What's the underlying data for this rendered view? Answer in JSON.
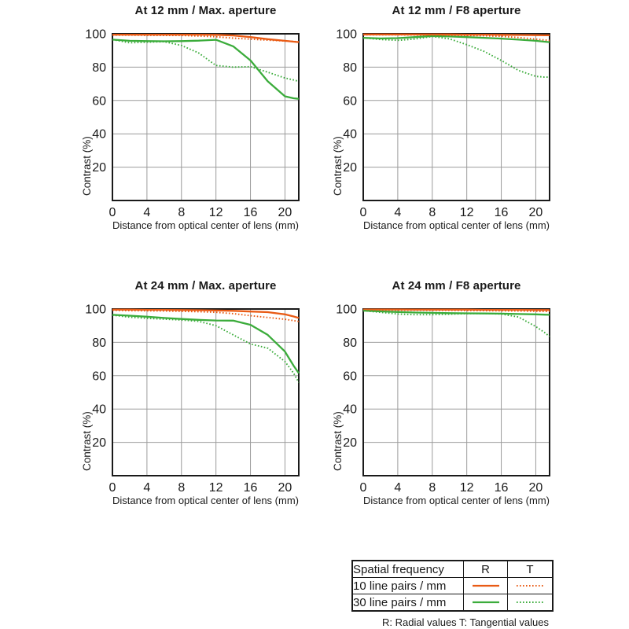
{
  "colors": {
    "orange": "#E95B15",
    "green": "#3BAC3B",
    "grid": "#9b9b9b",
    "axis": "#1a1a1a"
  },
  "legend": {
    "header": {
      "freq": "Spatial frequency",
      "r": "R",
      "t": "T"
    },
    "rows": [
      {
        "label": "10 line pairs / mm",
        "color": "orange"
      },
      {
        "label": "30 line pairs / mm",
        "color": "green"
      }
    ],
    "footnote": "R: Radial values  T: Tangential values"
  },
  "chart_data": [
    {
      "type": "line",
      "title": "At 12 mm / Max. aperture",
      "xlabel": "Distance from optical center of lens (mm)",
      "ylabel": "Contrast (%)",
      "xlim": [
        0,
        21.6
      ],
      "ylim": [
        0,
        100
      ],
      "xticks": [
        0,
        4,
        8,
        12,
        16,
        20
      ],
      "yticks": [
        20,
        40,
        60,
        80,
        100
      ],
      "grid": true,
      "x": [
        0,
        2,
        4,
        6,
        8,
        10,
        12,
        14,
        16,
        18,
        20,
        21,
        21.6
      ],
      "series": [
        {
          "name": "10 line pairs/mm Radial",
          "color": "orange",
          "style": "solid",
          "values": [
            99.5,
            99.5,
            99.5,
            99.5,
            99.5,
            99.5,
            99.4,
            99.0,
            98.0,
            96.8,
            95.8,
            95.3,
            95.0
          ]
        },
        {
          "name": "10 line pairs/mm Tangential",
          "color": "orange",
          "style": "dotted",
          "values": [
            99.2,
            99.2,
            99.1,
            99.0,
            99.0,
            98.7,
            98.2,
            97.4,
            96.8,
            96.2,
            95.7,
            95.4,
            95.3
          ]
        },
        {
          "name": "30 line pairs/mm Radial",
          "color": "green",
          "style": "solid",
          "values": [
            96.5,
            95.8,
            95.6,
            95.5,
            95.6,
            95.9,
            96.4,
            92.5,
            84.0,
            71.5,
            62.5,
            61.3,
            61.0
          ]
        },
        {
          "name": "30 line pairs/mm Tangential",
          "color": "green",
          "style": "dotted",
          "values": [
            96.5,
            94.6,
            95.0,
            95.3,
            93.0,
            88.5,
            81.0,
            80.0,
            80.3,
            77.0,
            73.5,
            72.3,
            71.5
          ]
        }
      ]
    },
    {
      "type": "line",
      "title": "At 12 mm / F8 aperture",
      "xlabel": "Distance from optical center of lens (mm)",
      "ylabel": "Contrast (%)",
      "xlim": [
        0,
        21.6
      ],
      "ylim": [
        0,
        100
      ],
      "xticks": [
        0,
        4,
        8,
        12,
        16,
        20
      ],
      "yticks": [
        20,
        40,
        60,
        80,
        100
      ],
      "grid": true,
      "x": [
        0,
        2,
        4,
        6,
        8,
        10,
        12,
        14,
        16,
        18,
        20,
        21,
        21.6
      ],
      "series": [
        {
          "name": "10 line pairs/mm Radial",
          "color": "orange",
          "style": "solid",
          "values": [
            99.6,
            99.6,
            99.6,
            99.6,
            99.6,
            99.6,
            99.5,
            99.5,
            99.4,
            99.3,
            99.2,
            99.1,
            99.1
          ]
        },
        {
          "name": "10 line pairs/mm Tangential",
          "color": "orange",
          "style": "dotted",
          "values": [
            99.4,
            99.4,
            99.4,
            99.3,
            99.3,
            99.2,
            99.0,
            98.8,
            98.5,
            97.8,
            96.8,
            96.3,
            96.0
          ]
        },
        {
          "name": "30 line pairs/mm Radial",
          "color": "green",
          "style": "solid",
          "values": [
            97.6,
            97.2,
            97.4,
            98.0,
            98.7,
            98.4,
            98.0,
            97.6,
            97.1,
            96.5,
            95.8,
            95.3,
            95.0
          ]
        },
        {
          "name": "30 line pairs/mm Tangential",
          "color": "green",
          "style": "dotted",
          "values": [
            97.6,
            96.6,
            96.1,
            96.9,
            98.4,
            97.0,
            93.5,
            89.5,
            84.0,
            78.0,
            74.5,
            74.0,
            74.0
          ]
        }
      ]
    },
    {
      "type": "line",
      "title": "At 24 mm / Max. aperture",
      "xlabel": "Distance from optical center of lens (mm)",
      "ylabel": "Contrast (%)",
      "xlim": [
        0,
        21.6
      ],
      "ylim": [
        0,
        100
      ],
      "xticks": [
        0,
        4,
        8,
        12,
        16,
        20
      ],
      "yticks": [
        20,
        40,
        60,
        80,
        100
      ],
      "grid": true,
      "x": [
        0,
        2,
        4,
        6,
        8,
        10,
        12,
        14,
        16,
        18,
        20,
        21,
        21.6
      ],
      "series": [
        {
          "name": "10 line pairs/mm Radial",
          "color": "orange",
          "style": "solid",
          "values": [
            99.6,
            99.6,
            99.5,
            99.5,
            99.4,
            99.3,
            99.1,
            98.9,
            98.5,
            98.1,
            96.8,
            95.5,
            94.6
          ]
        },
        {
          "name": "10 line pairs/mm Tangential",
          "color": "orange",
          "style": "dotted",
          "values": [
            99.2,
            99.0,
            98.9,
            98.8,
            98.6,
            98.4,
            98.0,
            97.2,
            96.0,
            94.9,
            93.8,
            93.0,
            92.5
          ]
        },
        {
          "name": "30 line pairs/mm Radial",
          "color": "green",
          "style": "solid",
          "values": [
            96.5,
            96.0,
            95.4,
            94.6,
            94.0,
            93.5,
            93.1,
            93.0,
            90.5,
            84.5,
            74.5,
            66.0,
            61.5
          ]
        },
        {
          "name": "30 line pairs/mm Tangential",
          "color": "green",
          "style": "dotted",
          "values": [
            96.3,
            95.1,
            94.4,
            93.9,
            93.4,
            92.6,
            90.0,
            84.5,
            79.0,
            76.5,
            68.5,
            61.5,
            56.0
          ]
        }
      ]
    },
    {
      "type": "line",
      "title": "At 24 mm / F8 aperture",
      "xlabel": "Distance from optical center of lens (mm)",
      "ylabel": "Contrast (%)",
      "xlim": [
        0,
        21.6
      ],
      "ylim": [
        0,
        100
      ],
      "xticks": [
        0,
        4,
        8,
        12,
        16,
        20
      ],
      "yticks": [
        20,
        40,
        60,
        80,
        100
      ],
      "grid": true,
      "x": [
        0,
        2,
        4,
        6,
        8,
        10,
        12,
        14,
        16,
        18,
        20,
        21,
        21.6
      ],
      "series": [
        {
          "name": "10 line pairs/mm Radial",
          "color": "orange",
          "style": "solid",
          "values": [
            99.7,
            99.7,
            99.7,
            99.6,
            99.6,
            99.6,
            99.6,
            99.5,
            99.5,
            99.5,
            99.4,
            99.4,
            99.4
          ]
        },
        {
          "name": "10 line pairs/mm Tangential",
          "color": "orange",
          "style": "dotted",
          "values": [
            99.4,
            99.4,
            99.3,
            99.3,
            99.2,
            99.2,
            99.1,
            99.0,
            98.9,
            98.8,
            98.7,
            98.6,
            98.6
          ]
        },
        {
          "name": "30 line pairs/mm Radial",
          "color": "green",
          "style": "solid",
          "values": [
            99.0,
            98.6,
            98.2,
            97.9,
            97.7,
            97.5,
            97.4,
            97.3,
            97.2,
            97.0,
            96.8,
            96.6,
            96.5
          ]
        },
        {
          "name": "30 line pairs/mm Tangential",
          "color": "green",
          "style": "dotted",
          "values": [
            99.0,
            98.0,
            97.0,
            96.6,
            96.6,
            96.9,
            97.2,
            97.3,
            97.0,
            95.2,
            89.5,
            86.0,
            83.5
          ]
        }
      ]
    }
  ]
}
